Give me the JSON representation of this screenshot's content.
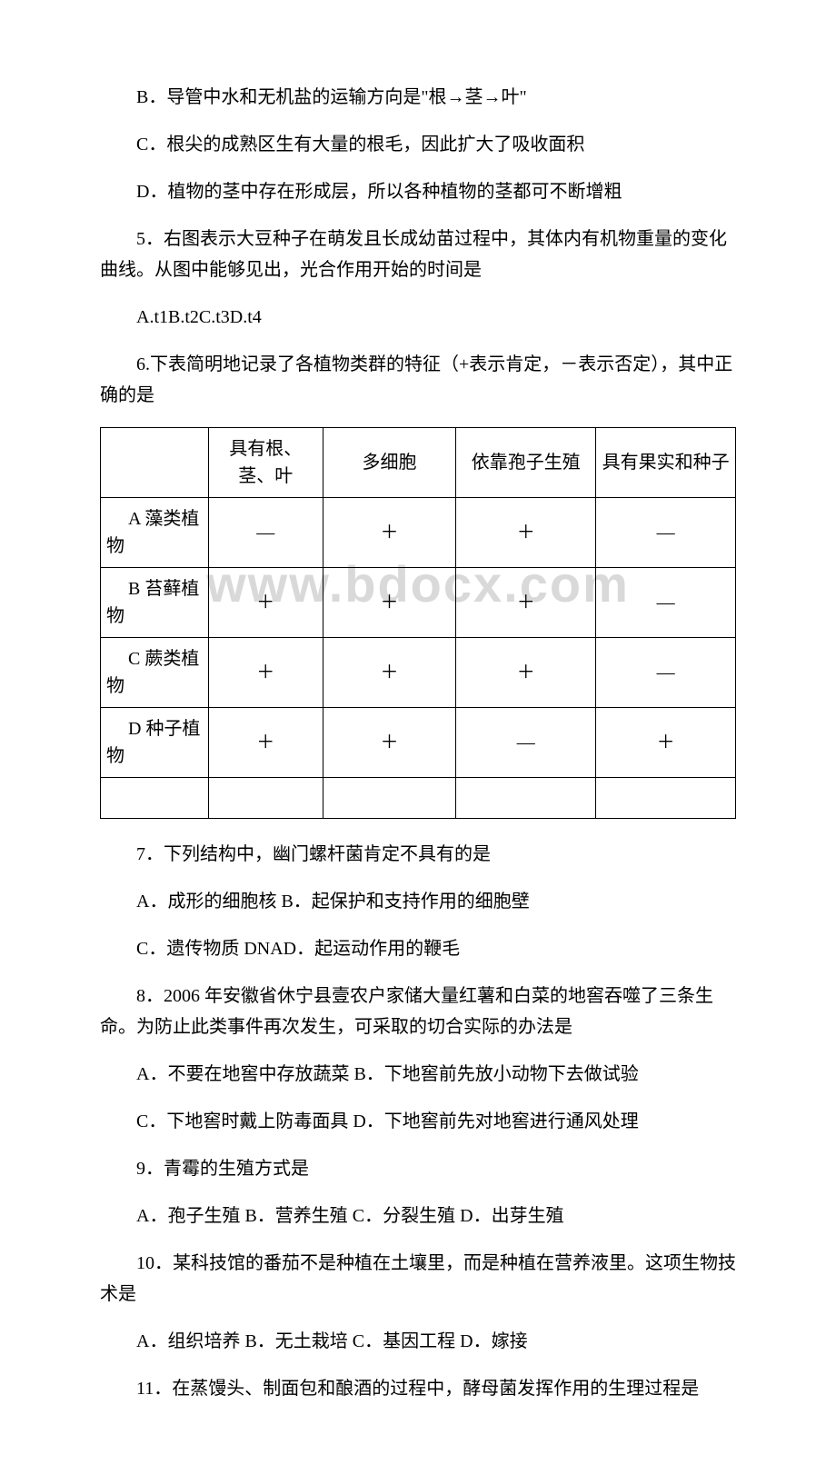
{
  "watermark": "www.bdocx.com",
  "lines": {
    "p1": "B．导管中水和无机盐的运输方向是\"根→茎→叶\"",
    "p2": "C．根尖的成熟区生有大量的根毛，因此扩大了吸收面积",
    "p3": "D．植物的茎中存在形成层，所以各种植物的茎都可不断增粗",
    "p4": "5．右图表示大豆种子在萌发且长成幼苗过程中，其体内有机物重量的变化曲线。从图中能够见出，光合作用开始的时间是",
    "p5": "A.t1B.t2C.t3D.t4",
    "p6": "6.下表简明地记录了各植物类群的特征（+表示肯定，－表示否定），其中正确的是",
    "p7": "7．下列结构中，幽门螺杆菌肯定不具有的是",
    "p8": "A．成形的细胞核 B．起保护和支持作用的细胞壁",
    "p9": "C．遗传物质 DNAD．起运动作用的鞭毛",
    "p10": "8．2006 年安徽省休宁县壹农户家储大量红薯和白菜的地窖吞噬了三条生命。为防止此类事件再次发生，可采取的切合实际的办法是",
    "p11": "A．不要在地窖中存放蔬菜 B．下地窖前先放小动物下去做试验",
    "p12": "C．下地窖时戴上防毒面具 D．下地窖前先对地窖进行通风处理",
    "p13": "9．青霉的生殖方式是",
    "p14": "A．孢子生殖 B．营养生殖 C．分裂生殖 D．出芽生殖",
    "p15": "10．某科技馆的番茄不是种植在土壤里，而是种植在营养液里。这项生物技术是",
    "p16": "A．组织培养 B．无土栽培 C．基因工程 D．嫁接",
    "p17": "11．在蒸馒头、制面包和酿酒的过程中，酵母菌发挥作用的生理过程是"
  },
  "table6": {
    "colwidths": [
      "17%",
      "18%",
      "21%",
      "22%",
      "22%"
    ],
    "header": [
      "",
      "具有根、茎、叶",
      "多细胞",
      "依靠孢子生殖",
      "具有果实和种子"
    ],
    "rows": [
      {
        "label": "A 藻类植物",
        "cells": [
          "—",
          "＋",
          "＋",
          "—"
        ]
      },
      {
        "label": "B 苔藓植物",
        "cells": [
          "＋",
          "＋",
          "＋",
          "—"
        ]
      },
      {
        "label": "C 蕨类植物",
        "cells": [
          "＋",
          "＋",
          "＋",
          "—"
        ]
      },
      {
        "label": "D 种子植物",
        "cells": [
          "＋",
          "＋",
          "—",
          "＋"
        ]
      }
    ]
  }
}
